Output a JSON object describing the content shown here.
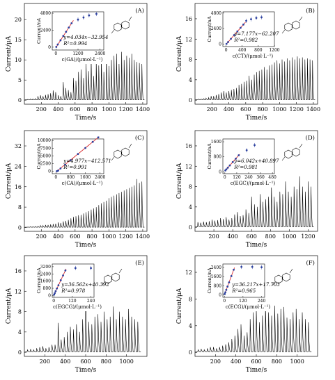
{
  "chart_data": [
    {
      "type": "line",
      "panel_label": "(A)",
      "xlabel": "Time/s",
      "ylabel": "Current/μA",
      "xlim": [
        0,
        1450
      ],
      "ylim": [
        -1,
        24
      ],
      "xticks": [
        200,
        400,
        600,
        800,
        1000,
        1200,
        1400
      ],
      "yticks": [
        0,
        5,
        10,
        15,
        20
      ],
      "spike_times": [
        40,
        70,
        100,
        130,
        160,
        190,
        220,
        250,
        280,
        310,
        340,
        370,
        400,
        430,
        460,
        490,
        520,
        550,
        580,
        610,
        640,
        670,
        700,
        730,
        760,
        790,
        820,
        850,
        880,
        910,
        940,
        970,
        1000,
        1030,
        1060,
        1090,
        1120,
        1150,
        1180,
        1210,
        1240,
        1270,
        1300,
        1330,
        1360,
        1390
      ],
      "spike_heights": [
        0.2,
        0.3,
        0.3,
        0.4,
        1.0,
        1.2,
        1.0,
        1.3,
        1.5,
        1.7,
        2.4,
        2.0,
        1.2,
        1.0,
        4.5,
        3.0,
        2.5,
        2.0,
        5.5,
        4.8,
        7.0,
        7.6,
        5.5,
        9.0,
        7.2,
        10.5,
        6.0,
        9.8,
        8.6,
        10.4,
        7.0,
        11.0,
        8.5,
        10.0,
        11.0,
        11.5,
        9.0,
        12.0,
        10.0,
        11.0,
        10.5,
        11.5,
        10.0,
        9.5,
        9.2,
        9.0
      ],
      "inset": {
        "equation": "y=4.034x−32.954",
        "r2": "R²=0.994",
        "xlabel": "c(GA)/(μmol·L⁻¹)",
        "ylabel": "Current/nA",
        "xlim": [
          -200,
          2600
        ],
        "ylim": [
          -400,
          5000
        ],
        "xticks": [
          "0",
          "1200",
          "2400"
        ],
        "xtick_values": [
          0,
          1200,
          2400
        ],
        "yticks": [
          "0",
          "2400",
          "4800"
        ],
        "ytick_values": [
          0,
          2400,
          4800
        ],
        "fit_points": {
          "x": [
            20,
            100,
            250,
            400,
            550,
            700,
            850
          ],
          "y": [
            40,
            380,
            980,
            1580,
            2180,
            2780,
            3380
          ]
        },
        "extra_points": {
          "x": [
            1200,
            1500,
            1800,
            2200
          ],
          "y": [
            3900,
            4200,
            4500,
            4700
          ]
        },
        "fit_range": [
          0,
          950
        ]
      }
    },
    {
      "type": "line",
      "panel_label": "(B)",
      "xlabel": "Time/s",
      "ylabel": "Current/μA",
      "xlim": [
        0,
        1450
      ],
      "ylim": [
        -0.8,
        19
      ],
      "xticks": [
        200,
        400,
        600,
        800,
        1000,
        1200,
        1400
      ],
      "yticks": [
        0,
        4,
        8,
        12,
        16
      ],
      "spike_times": [
        40,
        70,
        100,
        130,
        160,
        190,
        220,
        250,
        280,
        310,
        340,
        370,
        400,
        430,
        460,
        490,
        520,
        550,
        580,
        610,
        640,
        670,
        700,
        730,
        760,
        790,
        820,
        850,
        880,
        910,
        940,
        970,
        1000,
        1030,
        1060,
        1090,
        1120,
        1150,
        1180,
        1210,
        1240,
        1270,
        1300,
        1330,
        1360,
        1390
      ],
      "spike_heights": [
        0.2,
        0.2,
        0.3,
        0.4,
        0.5,
        0.8,
        0.8,
        1.0,
        1.2,
        1.5,
        1.8,
        1.5,
        1.8,
        2.0,
        2.2,
        2.4,
        3.0,
        3.2,
        3.6,
        3.8,
        4.8,
        4.0,
        5.0,
        5.5,
        5.8,
        6.0,
        6.5,
        6.0,
        6.8,
        7.0,
        7.4,
        7.8,
        7.2,
        8.0,
        7.6,
        8.2,
        7.8,
        8.4,
        8.0,
        8.6,
        8.2,
        8.4,
        8.0,
        8.2,
        8.0,
        7.8
      ],
      "inset": {
        "equation": "y=7.177x−62.207",
        "r2": "R²=0.982",
        "xlabel": "c(CT)/(μmol·L⁻¹)",
        "ylabel": "Current/nA",
        "xlim": [
          -80,
          1200
        ],
        "ylim": [
          -400,
          5000
        ],
        "xticks": [
          "0",
          "400",
          "800",
          "1200"
        ],
        "xtick_values": [
          0,
          400,
          800,
          1200
        ],
        "yticks": [
          "0",
          "2400",
          "4800"
        ],
        "ytick_values": [
          0,
          2400,
          4800
        ],
        "fit_points": {
          "x": [
            10,
            50,
            120,
            200,
            280,
            360,
            430
          ],
          "y": [
            20,
            300,
            800,
            1380,
            1950,
            2520,
            3020
          ]
        },
        "extra_points": {
          "x": [
            500,
            620,
            750,
            880
          ],
          "y": [
            3600,
            3850,
            4050,
            4150
          ]
        },
        "fit_range": [
          0,
          480
        ]
      }
    },
    {
      "type": "line",
      "panel_label": "(C)",
      "xlabel": "Time/s",
      "ylabel": "Current/μA",
      "xlim": [
        0,
        1450
      ],
      "ylim": [
        -1.5,
        38
      ],
      "xticks": [
        200,
        400,
        600,
        800,
        1000,
        1200,
        1400
      ],
      "yticks": [
        0,
        8,
        16,
        24,
        32
      ],
      "spike_times": [
        40,
        70,
        100,
        130,
        160,
        190,
        220,
        250,
        280,
        310,
        340,
        370,
        400,
        430,
        460,
        490,
        520,
        550,
        580,
        610,
        640,
        670,
        700,
        730,
        760,
        790,
        820,
        850,
        880,
        910,
        940,
        970,
        1000,
        1030,
        1060,
        1090,
        1120,
        1150,
        1180,
        1210,
        1240,
        1270,
        1300,
        1330,
        1360,
        1390
      ],
      "spike_heights": [
        0.2,
        0.3,
        0.3,
        0.4,
        0.5,
        0.8,
        0.8,
        1.0,
        1.0,
        1.2,
        1.4,
        1.5,
        2.0,
        1.8,
        2.4,
        2.6,
        3.0,
        3.6,
        4.2,
        4.4,
        4.8,
        5.0,
        5.5,
        6.0,
        6.4,
        7.0,
        7.5,
        8.0,
        8.8,
        9.5,
        10.0,
        10.5,
        11.5,
        12.0,
        12.5,
        13.0,
        13.5,
        14.0,
        14.5,
        15.0,
        15.5,
        16.0,
        16.5,
        19.0,
        17.5,
        18.0
      ],
      "inset": {
        "equation": "y=4.977x−412.571",
        "r2": "R²=0.991",
        "xlabel": "c(CA)/(μmol·L⁻¹)",
        "ylabel": "Current/nA",
        "xlim": [
          -200,
          2600
        ],
        "ylim": [
          -800,
          10500
        ],
        "xticks": [
          "0",
          "800",
          "1600",
          "2400"
        ],
        "xtick_values": [
          0,
          800,
          1600,
          2400
        ],
        "yticks": [
          "0",
          "2500",
          "5000",
          "7500",
          "10000"
        ],
        "ytick_values": [
          0,
          2500,
          5000,
          7500,
          10000
        ],
        "fit_points": {
          "x": [
            50,
            120,
            250,
            500,
            800,
            1200,
            1600,
            2000,
            2300
          ],
          "y": [
            0,
            200,
            900,
            2100,
            3600,
            5600,
            7550,
            9550,
            11000
          ]
        },
        "extra_points": {
          "x": [],
          "y": []
        },
        "fit_range": [
          0,
          2350
        ]
      }
    },
    {
      "type": "line",
      "panel_label": "(D)",
      "xlabel": "Time/s",
      "ylabel": "Current/μA",
      "xlim": [
        0,
        1300
      ],
      "ylim": [
        -0.8,
        19
      ],
      "xticks": [
        200,
        400,
        600,
        800,
        1000,
        1200
      ],
      "yticks": [
        0,
        4,
        8,
        12,
        16
      ],
      "spike_times": [
        30,
        60,
        90,
        120,
        150,
        180,
        210,
        240,
        270,
        300,
        330,
        360,
        390,
        420,
        450,
        480,
        510,
        540,
        570,
        600,
        630,
        660,
        690,
        720,
        750,
        780,
        810,
        840,
        870,
        900,
        930,
        960,
        990,
        1020,
        1050,
        1080,
        1110,
        1140,
        1170,
        1200,
        1230
      ],
      "spike_heights": [
        1.0,
        0.9,
        1.1,
        1.0,
        1.2,
        1.5,
        1.3,
        1.4,
        1.8,
        1.6,
        2.0,
        1.5,
        1.8,
        2.5,
        3.0,
        2.2,
        2.4,
        3.5,
        2.8,
        6.0,
        4.5,
        4.0,
        6.5,
        5.0,
        5.5,
        6.0,
        8.0,
        6.0,
        5.0,
        7.0,
        6.5,
        9.0,
        7.0,
        6.0,
        8.0,
        7.5,
        10.0,
        8.0,
        7.0,
        9.0,
        8.0
      ],
      "inset": {
        "equation": "y=6.042x+40.897",
        "r2": "R²=0.981",
        "xlabel": "c(EGC)/(μmol·L⁻¹)",
        "ylabel": "Current/nA",
        "xlim": [
          -20,
          500
        ],
        "ylim": [
          -100,
          1750
        ],
        "xticks": [
          "0",
          "120",
          "240",
          "360",
          "480"
        ],
        "xtick_values": [
          0,
          120,
          240,
          360,
          480
        ],
        "yticks": [
          "0",
          "800",
          "1600"
        ],
        "ytick_values": [
          0,
          800,
          1600
        ],
        "fit_points": {
          "x": [
            5,
            15,
            30,
            50,
            80,
            110,
            140
          ],
          "y": [
            70,
            130,
            220,
            340,
            520,
            700,
            880
          ]
        },
        "extra_points": {
          "x": [
            220,
            300
          ],
          "y": [
            1150,
            1420
          ]
        },
        "fit_range": [
          0,
          150
        ]
      }
    },
    {
      "type": "line",
      "panel_label": "(E)",
      "xlabel": "Time/s",
      "ylabel": "Current/μA",
      "xlim": [
        0,
        1200
      ],
      "ylim": [
        -0.8,
        19
      ],
      "xticks": [
        200,
        400,
        600,
        800,
        1000
      ],
      "yticks": [
        0,
        4,
        8,
        12,
        16
      ],
      "spike_times": [
        30,
        60,
        90,
        120,
        150,
        180,
        210,
        240,
        270,
        300,
        330,
        360,
        390,
        420,
        450,
        480,
        510,
        540,
        570,
        600,
        630,
        660,
        690,
        720,
        750,
        780,
        810,
        840,
        870,
        900,
        930,
        960,
        990,
        1020,
        1050,
        1080,
        1110
      ],
      "spike_heights": [
        0.5,
        0.6,
        0.5,
        0.8,
        1.0,
        1.2,
        0.8,
        1.0,
        1.5,
        1.5,
        5.8,
        2.5,
        3.0,
        4.0,
        5.0,
        4.5,
        5.5,
        4.0,
        6.5,
        12.0,
        6.0,
        5.5,
        7.0,
        7.5,
        6.0,
        8.0,
        6.5,
        7.0,
        9.0,
        6.5,
        8.0,
        7.0,
        6.5,
        8.5,
        7.0,
        6.5,
        6.0
      ],
      "inset": {
        "equation": "y=36.562x+40.392",
        "r2": "R²=0.978",
        "xlabel": "c(EGCG)/(μmol·L⁻¹)",
        "ylabel": "Current/nA",
        "xlim": [
          -10,
          260
        ],
        "ylim": [
          -200,
          3500
        ],
        "xticks": [
          "0",
          "120",
          "240"
        ],
        "xtick_values": [
          0,
          120,
          240
        ],
        "yticks": [
          "0",
          "800",
          "1600",
          "2400",
          "3200"
        ],
        "ytick_values": [
          0,
          800,
          1600,
          2400,
          3200
        ],
        "fit_points": {
          "x": [
            2,
            6,
            12,
            20,
            30,
            45,
            60,
            75
          ],
          "y": [
            100,
            260,
            480,
            780,
            1140,
            1700,
            2230,
            2780
          ]
        },
        "extra_points": {
          "x": [
            140,
            240
          ],
          "y": [
            3050,
            3050
          ]
        },
        "fit_range": [
          0,
          80
        ]
      }
    },
    {
      "type": "line",
      "panel_label": "(F)",
      "xlabel": "Time/s",
      "ylabel": "Current/μA",
      "xlim": [
        0,
        1200
      ],
      "ylim": [
        -0.6,
        14.5
      ],
      "xticks": [
        200,
        400,
        600,
        800,
        1000
      ],
      "yticks": [
        0,
        4,
        8,
        12
      ],
      "spike_times": [
        30,
        60,
        90,
        120,
        150,
        180,
        210,
        240,
        270,
        300,
        330,
        360,
        390,
        420,
        450,
        480,
        510,
        540,
        570,
        600,
        630,
        660,
        690,
        720,
        750,
        780,
        810,
        840,
        870,
        900,
        930,
        960,
        990,
        1020,
        1050,
        1080,
        1110
      ],
      "spike_heights": [
        0.4,
        0.5,
        0.4,
        0.6,
        0.8,
        0.8,
        0.6,
        0.8,
        1.0,
        1.2,
        1.5,
        2.0,
        2.5,
        3.5,
        4.2,
        2.5,
        3.0,
        5.0,
        6.0,
        6.5,
        4.5,
        5.5,
        7.2,
        6.0,
        5.5,
        7.0,
        5.8,
        6.5,
        6.8,
        5.2,
        5.0,
        6.0,
        6.5,
        5.0,
        6.0,
        5.0,
        4.5
      ],
      "inset": {
        "equation": "y=36.217x+17.703",
        "r2": "R²=0.965",
        "xlabel": "c(ECG)/(μmol·L⁻¹)",
        "ylabel": "Current/nA",
        "xlim": [
          -10,
          260
        ],
        "ylim": [
          -200,
          2700
        ],
        "xticks": [
          "0",
          "120",
          "240"
        ],
        "xtick_values": [
          0,
          120,
          240
        ],
        "yticks": [
          "0",
          "800",
          "1600",
          "2400"
        ],
        "ytick_values": [
          0,
          800,
          1600,
          2400
        ],
        "fit_points": {
          "x": [
            2,
            6,
            12,
            20,
            30,
            45,
            60
          ],
          "y": [
            90,
            240,
            450,
            740,
            1100,
            1650,
            2200
          ]
        },
        "extra_points": {
          "x": [
            110,
            180,
            240
          ],
          "y": [
            2450,
            2450,
            2420
          ]
        },
        "fit_range": [
          0,
          65
        ]
      }
    }
  ]
}
